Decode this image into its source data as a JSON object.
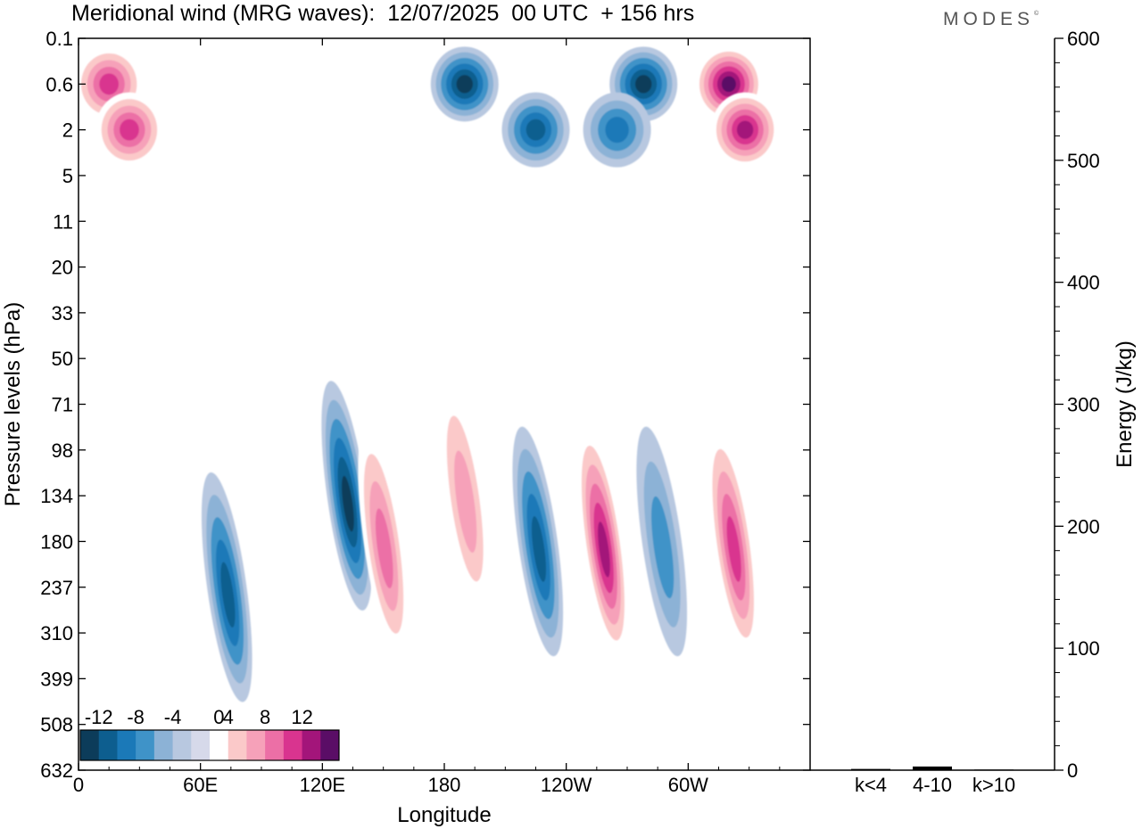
{
  "title": "Meridional wind (MRG waves):  12/07/2025  00 UTC  + 156 hrs",
  "brand": {
    "name": "MODES",
    "mark": "©"
  },
  "chart_data": [
    {
      "type": "heatmap",
      "title": "Meridional wind (MRG waves):  12/07/2025  00 UTC  + 156 hrs",
      "xlabel": "Longitude",
      "ylabel": "Pressure levels (hPa)",
      "x_ticks": [
        "0",
        "60E",
        "120E",
        "180",
        "120W",
        "60W"
      ],
      "x_tick_degrees": [
        0,
        60,
        120,
        180,
        240,
        300
      ],
      "xlim": [
        0,
        360
      ],
      "y_ticks": [
        "0.1",
        "0.6",
        "2",
        "5",
        "11",
        "20",
        "33",
        "50",
        "71",
        "98",
        "134",
        "180",
        "237",
        "310",
        "399",
        "508",
        "632"
      ],
      "colorbar": {
        "labels": [
          "-12",
          "-8",
          "-4",
          "0",
          "4",
          "8",
          "12"
        ],
        "bounds": [
          -14,
          -12,
          -10,
          -8,
          -6,
          -4,
          -2,
          2,
          4,
          6,
          8,
          10,
          12,
          14
        ],
        "colors": [
          "#0c3c5a",
          "#0d5e8f",
          "#1b79b8",
          "#3f93c8",
          "#8cb2d6",
          "#b8c8e0",
          "#d6d9ea",
          "#ffffff",
          "#fbc9c9",
          "#f6a1b9",
          "#ec6fa6",
          "#d9348f",
          "#a3157a",
          "#5a0d66"
        ]
      },
      "features": [
        {
          "name": "stratospheric positive core",
          "lon": 15,
          "level": "0.6",
          "value": 10
        },
        {
          "name": "stratospheric positive core",
          "lon": 25,
          "level": "2",
          "value": 10
        },
        {
          "name": "stratospheric negative core",
          "lon": 190,
          "level": "0.6",
          "value": -13
        },
        {
          "name": "stratospheric negative core",
          "lon": 225,
          "level": "2",
          "value": -11
        },
        {
          "name": "stratospheric negative core",
          "lon": 278,
          "level": "0.6",
          "value": -12
        },
        {
          "name": "stratospheric negative core",
          "lon": 265,
          "level": "2",
          "value": -9
        },
        {
          "name": "stratospheric positive core",
          "lon": 320,
          "level": "0.6",
          "value": 14
        },
        {
          "name": "stratospheric positive core",
          "lon": 328,
          "level": "2",
          "value": 12
        },
        {
          "name": "tropospheric negative core",
          "lon": 73,
          "level": "237",
          "value": -10
        },
        {
          "name": "tropospheric negative core",
          "lon": 132,
          "level": "134",
          "value": -13
        },
        {
          "name": "tropospheric positive core",
          "lon": 150,
          "level": "180",
          "value": 9
        },
        {
          "name": "tropospheric positive core",
          "lon": 190,
          "level": "134",
          "value": 7
        },
        {
          "name": "tropospheric negative core",
          "lon": 226,
          "level": "180",
          "value": -10
        },
        {
          "name": "tropospheric positive core",
          "lon": 258,
          "level": "180",
          "value": 12
        },
        {
          "name": "tropospheric negative core",
          "lon": 287,
          "level": "180",
          "value": -7
        },
        {
          "name": "tropospheric positive core",
          "lon": 322,
          "level": "180",
          "value": 10
        }
      ]
    },
    {
      "type": "bar",
      "categories": [
        "k<4",
        "4-10",
        "k>10"
      ],
      "values": [
        1,
        3,
        0.5
      ],
      "ylabel": "Energy (J/kg)",
      "ylim": [
        0,
        600
      ],
      "y_ticks": [
        "0",
        "100",
        "200",
        "300",
        "400",
        "500",
        "600"
      ]
    }
  ]
}
